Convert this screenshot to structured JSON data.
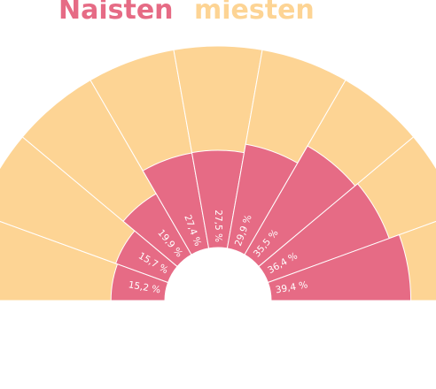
{
  "colors": {
    "women": "#e66b85",
    "men": "#fdd494",
    "separator": "#ffffff"
  },
  "chart_data": {
    "type": "radial-stacked-bar",
    "legend": [
      {
        "key": "women",
        "label": "Naisten",
        "color": "#e66b85"
      },
      {
        "key": "men",
        "label": "miesten",
        "color": "#fdd494"
      }
    ],
    "series": [
      {
        "name": "Naisten",
        "values": [
          15.2,
          15.7,
          19.9,
          27.4,
          27.5,
          29.9,
          35.5,
          36.4,
          39.4
        ],
        "labels": [
          "15,2 %",
          "15,7 %",
          "19,9 %",
          "27,4 %",
          "27,5 %",
          "29,9 %",
          "35,5 %",
          "36,4 %",
          "39,4 %"
        ]
      },
      {
        "name": "miesten",
        "values": [
          84.8,
          84.3,
          80.1,
          72.6,
          72.5,
          70.1,
          64.5,
          63.6,
          60.6
        ]
      }
    ]
  }
}
